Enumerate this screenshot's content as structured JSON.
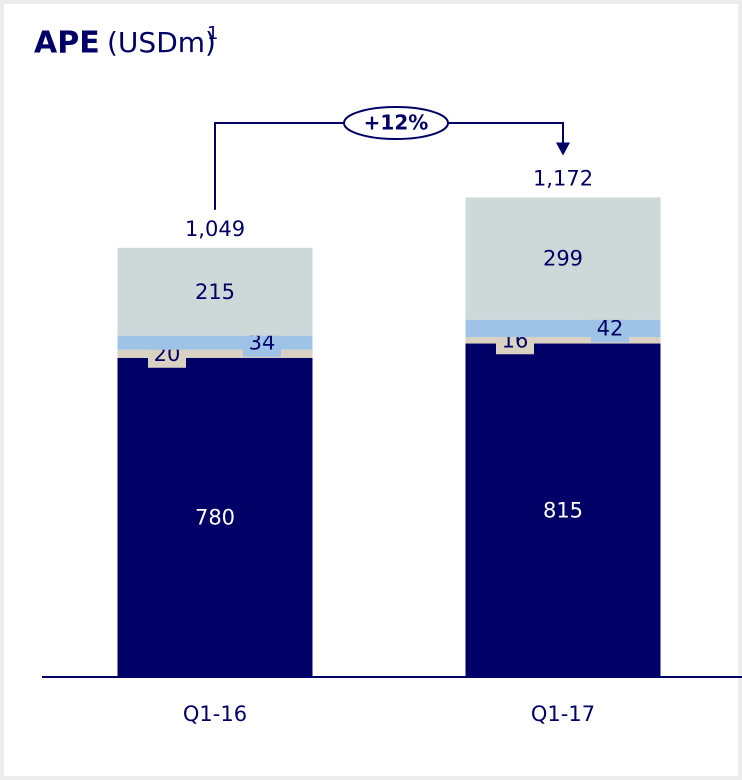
{
  "chart_data": {
    "type": "bar",
    "stacked": true,
    "title": "APE",
    "subtitle": "(USDm)",
    "footnote_marker": "1",
    "annotation": "+12%",
    "categories": [
      "Q1-16",
      "Q1-17"
    ],
    "series": [
      {
        "name": null,
        "color": "#000066",
        "values": [
          780,
          815
        ]
      },
      {
        "name": null,
        "color": "#d9d2c2",
        "values": [
          20,
          16
        ]
      },
      {
        "name": null,
        "color": "#9fc3e7",
        "values": [
          34,
          42
        ]
      },
      {
        "name": null,
        "color": "#cdd8d8",
        "values": [
          215,
          299
        ]
      }
    ],
    "totals": [
      1049,
      1172
    ],
    "total_labels": [
      "1,049",
      "1,172"
    ],
    "ylim": [
      0,
      1200
    ]
  }
}
